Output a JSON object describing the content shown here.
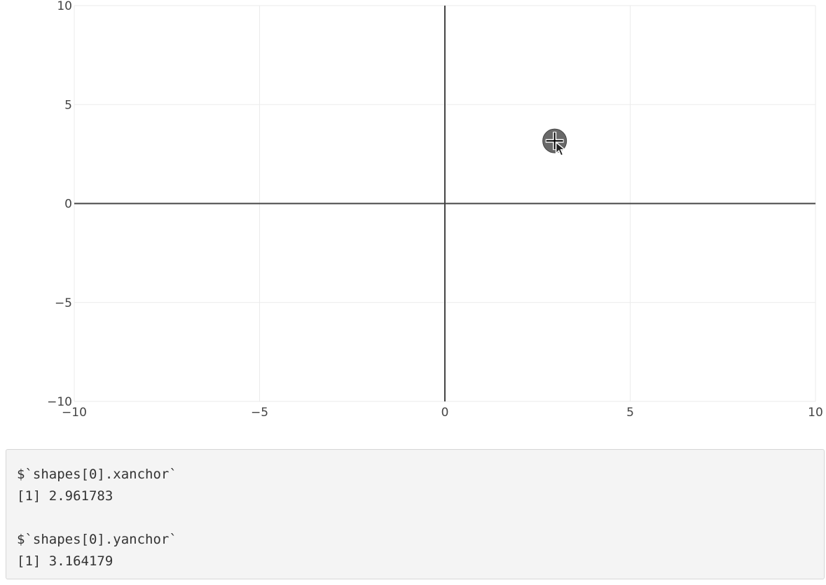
{
  "chart_data": {
    "type": "scatter",
    "title": "",
    "xlabel": "",
    "ylabel": "",
    "xlim": [
      -10,
      10
    ],
    "ylim": [
      -10,
      10
    ],
    "x_ticks": [
      -10,
      -5,
      0,
      5,
      10
    ],
    "y_ticks": [
      -10,
      -5,
      0,
      5,
      10
    ],
    "x_tick_labels": [
      "−10",
      "−5",
      "0",
      "5",
      "10"
    ],
    "y_tick_labels": [
      "−10",
      "−5",
      "0",
      "5",
      "10"
    ],
    "grid": true,
    "zero_lines": true,
    "shapes": [
      {
        "type": "circle",
        "xanchor": 2.961783,
        "yanchor": 3.164179,
        "color": "#444444"
      }
    ]
  },
  "cursor": {
    "icon": "move-cursor-icon"
  },
  "console": {
    "xanchor_label": "$`shapes[0].xanchor`",
    "xanchor_value": "[1] 2.961783",
    "yanchor_label": "$`shapes[0].yanchor`",
    "yanchor_value": "[1] 3.164179"
  },
  "colors": {
    "grid": "#ebebeb",
    "zeroline": "#444444",
    "text": "#444444",
    "console_bg": "#f4f4f4"
  }
}
